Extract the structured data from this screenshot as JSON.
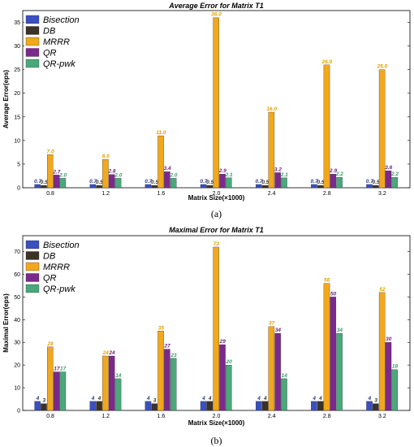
{
  "colors": {
    "Bisection": "#3a4fc0",
    "DB": "#3b3327",
    "MRRR": "#f2a81c",
    "QR": "#7b2a8c",
    "QR-pwk": "#4aa87a"
  },
  "label_colors": {
    "Bisection": "#2b3a8a",
    "DB": "#3b3327",
    "MRRR": "#e0a000",
    "QR": "#6b1f7c",
    "QR-pwk": "#3a9a6a"
  },
  "chart_data": [
    {
      "type": "bar",
      "title": "Average Error for Matrix T1",
      "xlabel": "Matrix Size(×1000)",
      "ylabel": "Average Error(eps)",
      "caption": "(a)",
      "categories": [
        "0.8",
        "1.2",
        "1.6",
        "2.0",
        "2.4",
        "2.8",
        "3.2"
      ],
      "ylim": [
        0,
        37.5
      ],
      "yticks": [
        0,
        5,
        10,
        15,
        20,
        25,
        30,
        35
      ],
      "grid": false,
      "legend": "top-left",
      "series": [
        {
          "name": "Bisection",
          "values": [
            0.7,
            0.7,
            0.7,
            0.7,
            0.7,
            0.7,
            0.7
          ],
          "labels": [
            "0.7",
            "0.7",
            "0.7",
            "0.7",
            "0.7",
            "0.7",
            "0.7"
          ]
        },
        {
          "name": "DB",
          "values": [
            0.5,
            0.5,
            0.5,
            0.5,
            0.5,
            0.5,
            0.5
          ],
          "labels": [
            "0.5",
            "0.5",
            "0.5",
            "0.5",
            "0.5",
            "0.5",
            "0.5"
          ]
        },
        {
          "name": "MRRR",
          "values": [
            7.0,
            6.0,
            11.0,
            36.0,
            16.0,
            26.0,
            25.0
          ],
          "labels": [
            "7.0",
            "6.0",
            "11.0",
            "36.0",
            "16.0",
            "26.0",
            "25.0"
          ]
        },
        {
          "name": "QR",
          "values": [
            2.7,
            2.8,
            3.4,
            2.9,
            3.2,
            2.9,
            3.6
          ],
          "labels": [
            "2.7",
            "2.8",
            "3.4",
            "2.9",
            "3.2",
            "2.9",
            "3.6"
          ]
        },
        {
          "name": "QR-pwk",
          "values": [
            2.0,
            2.0,
            2.0,
            2.1,
            2.1,
            2.2,
            2.2
          ],
          "labels": [
            "2.0",
            "2.0",
            "2.0",
            "2.1",
            "2.1",
            "2.2",
            "2.2"
          ]
        }
      ]
    },
    {
      "type": "bar",
      "title": "Maximal Error for Matrix T1",
      "xlabel": "Matrix Size(×1000)",
      "ylabel": "Maximal Error(eps)",
      "caption": "(b)",
      "categories": [
        "0.8",
        "1.2",
        "1.6",
        "2.0",
        "2.4",
        "2.8",
        "3.2"
      ],
      "ylim": [
        0,
        77
      ],
      "yticks": [
        0,
        10,
        20,
        30,
        40,
        50,
        60,
        70
      ],
      "grid": false,
      "legend": "top-left",
      "series": [
        {
          "name": "Bisection",
          "values": [
            4,
            4,
            4,
            4,
            4,
            4,
            4
          ],
          "labels": [
            "4",
            "4",
            "4",
            "4",
            "4",
            "4",
            "4"
          ]
        },
        {
          "name": "DB",
          "values": [
            3,
            4,
            3,
            4,
            4,
            4,
            3
          ],
          "labels": [
            "3",
            "4",
            "3",
            "4",
            "4",
            "4",
            "3"
          ]
        },
        {
          "name": "MRRR",
          "values": [
            28,
            24,
            35,
            72,
            37,
            56,
            52
          ],
          "labels": [
            "28",
            "24",
            "35",
            "72",
            "37",
            "56",
            "52"
          ]
        },
        {
          "name": "QR",
          "values": [
            17,
            24,
            27,
            29,
            34,
            50,
            30
          ],
          "labels": [
            "17",
            "24",
            "27",
            "29",
            "34",
            "50",
            "30"
          ]
        },
        {
          "name": "QR-pwk",
          "values": [
            17,
            14,
            23,
            20,
            14,
            34,
            18
          ],
          "labels": [
            "17",
            "14",
            "23",
            "20",
            "14",
            "34",
            "18"
          ]
        }
      ]
    }
  ]
}
